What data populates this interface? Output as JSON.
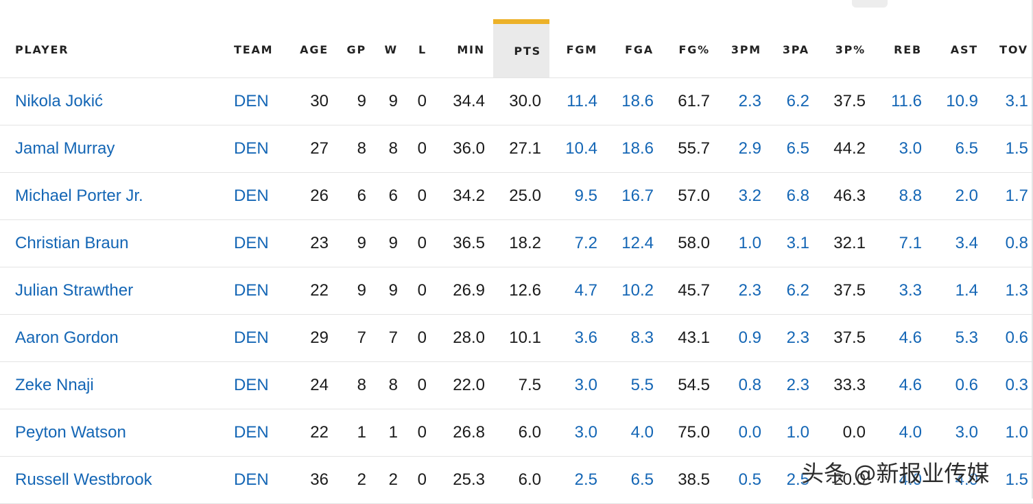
{
  "columns": [
    {
      "key": "player",
      "label": "PLAYER"
    },
    {
      "key": "team",
      "label": "TEAM"
    },
    {
      "key": "age",
      "label": "AGE"
    },
    {
      "key": "gp",
      "label": "GP"
    },
    {
      "key": "w",
      "label": "W"
    },
    {
      "key": "l",
      "label": "L"
    },
    {
      "key": "min",
      "label": "MIN"
    },
    {
      "key": "pts",
      "label": "PTS",
      "sorted": true
    },
    {
      "key": "fgm",
      "label": "FGM"
    },
    {
      "key": "fga",
      "label": "FGA"
    },
    {
      "key": "fgpct",
      "label": "FG%"
    },
    {
      "key": "tpm",
      "label": "3PM"
    },
    {
      "key": "tpa",
      "label": "3PA"
    },
    {
      "key": "tppct",
      "label": "3P%"
    },
    {
      "key": "reb",
      "label": "REB"
    },
    {
      "key": "ast",
      "label": "AST"
    },
    {
      "key": "tov",
      "label": "TOV"
    }
  ],
  "rows": [
    [
      "Nikola Jokić",
      "DEN",
      "30",
      "9",
      "9",
      "0",
      "34.4",
      "30.0",
      "11.4",
      "18.6",
      "61.7",
      "2.3",
      "6.2",
      "37.5",
      "11.6",
      "10.9",
      "3.1"
    ],
    [
      "Jamal Murray",
      "DEN",
      "27",
      "8",
      "8",
      "0",
      "36.0",
      "27.1",
      "10.4",
      "18.6",
      "55.7",
      "2.9",
      "6.5",
      "44.2",
      "3.0",
      "6.5",
      "1.5"
    ],
    [
      "Michael Porter Jr.",
      "DEN",
      "26",
      "6",
      "6",
      "0",
      "34.2",
      "25.0",
      "9.5",
      "16.7",
      "57.0",
      "3.2",
      "6.8",
      "46.3",
      "8.8",
      "2.0",
      "1.7"
    ],
    [
      "Christian Braun",
      "DEN",
      "23",
      "9",
      "9",
      "0",
      "36.5",
      "18.2",
      "7.2",
      "12.4",
      "58.0",
      "1.0",
      "3.1",
      "32.1",
      "7.1",
      "3.4",
      "0.8"
    ],
    [
      "Julian Strawther",
      "DEN",
      "22",
      "9",
      "9",
      "0",
      "26.9",
      "12.6",
      "4.7",
      "10.2",
      "45.7",
      "2.3",
      "6.2",
      "37.5",
      "3.3",
      "1.4",
      "1.3"
    ],
    [
      "Aaron Gordon",
      "DEN",
      "29",
      "7",
      "7",
      "0",
      "28.0",
      "10.1",
      "3.6",
      "8.3",
      "43.1",
      "0.9",
      "2.3",
      "37.5",
      "4.6",
      "5.3",
      "0.6"
    ],
    [
      "Zeke Nnaji",
      "DEN",
      "24",
      "8",
      "8",
      "0",
      "22.0",
      "7.5",
      "3.0",
      "5.5",
      "54.5",
      "0.8",
      "2.3",
      "33.3",
      "4.6",
      "0.6",
      "0.3"
    ],
    [
      "Peyton Watson",
      "DEN",
      "22",
      "1",
      "1",
      "0",
      "26.8",
      "6.0",
      "3.0",
      "4.0",
      "75.0",
      "0.0",
      "1.0",
      "0.0",
      "4.0",
      "3.0",
      "1.0"
    ],
    [
      "Russell Westbrook",
      "DEN",
      "36",
      "2",
      "2",
      "0",
      "25.3",
      "6.0",
      "2.5",
      "6.5",
      "38.5",
      "0.5",
      "2.5",
      "20.0",
      "4.0",
      "4.0",
      "1.5"
    ]
  ],
  "watermark": "头条 @新报业传媒",
  "colors": {
    "link": "#1466b5",
    "text": "#1b1b1b",
    "sort_accent": "#ecb128",
    "sort_background": "#eaeaea",
    "row_border": "#e3e3e3"
  }
}
